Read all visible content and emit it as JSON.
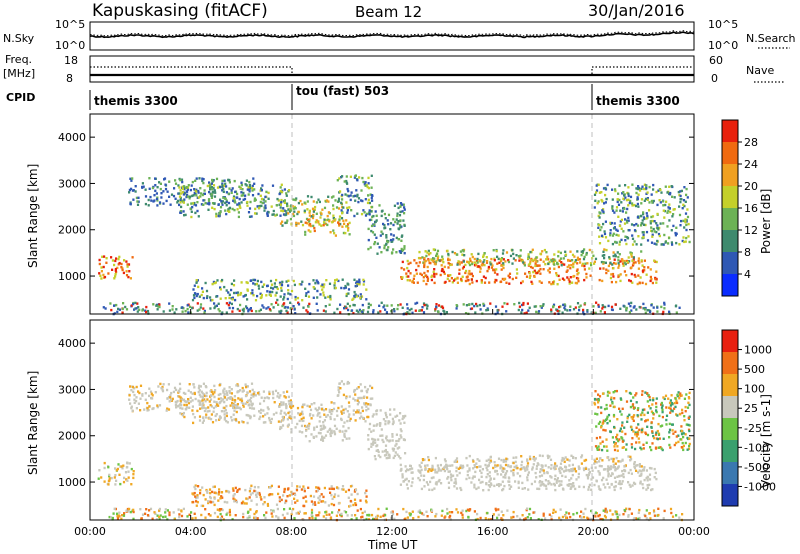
{
  "header": {
    "station": "Kapuskasing (fitACF)",
    "beam": "Beam 12",
    "date": "30/Jan/2016"
  },
  "noise_panel": {
    "left_label": "N.Sky",
    "left_ticks": [
      "10^5",
      "10^0"
    ],
    "right_label": "N.Search",
    "right_ticks": [
      "10^5",
      "10^0"
    ]
  },
  "freq_panel": {
    "left_label_1": "Freq.",
    "left_label_2": "[MHz]",
    "left_ticks": [
      "18",
      "8"
    ],
    "right_label": "Nave",
    "right_ticks": [
      "60",
      "0"
    ]
  },
  "cpid": {
    "label": "CPID",
    "segments": [
      {
        "name": "themis 3300",
        "start_hour": 0
      },
      {
        "name": "tou (fast) 503",
        "start_hour": 8
      },
      {
        "name": "themis 3300",
        "start_hour": 20
      }
    ]
  },
  "chart_data": [
    {
      "type": "heatmap",
      "ylabel": "Slant Range [km]",
      "yticks": [
        "4000",
        "3000",
        "2000",
        "1000"
      ],
      "ylim": [
        180,
        4500
      ],
      "colorbar_label": "Power [dB]",
      "colorbar_ticks": [
        "28",
        "24",
        "20",
        "16",
        "12",
        "8",
        "4"
      ],
      "colors": [
        "#0a2cff",
        "#2f58b4",
        "#3e8a6e",
        "#6cb255",
        "#c4d02a",
        "#f0a020",
        "#f06a10",
        "#e8200c"
      ]
    },
    {
      "type": "heatmap",
      "ylabel": "Slant Range [km]",
      "yticks": [
        "4000",
        "3000",
        "2000",
        "1000"
      ],
      "ylim": [
        180,
        4500
      ],
      "colorbar_label": "Velocity [m s-1]",
      "colorbar_ticks": [
        "1000",
        "500",
        "100",
        "25",
        "-25",
        "-100",
        "-500",
        "-1000"
      ],
      "colors": [
        "#1f3cb0",
        "#3a78b0",
        "#3aa06e",
        "#6cc444",
        "#c8c8bc",
        "#f0a824",
        "#f07018",
        "#e82010"
      ]
    }
  ],
  "time_axis": {
    "label": "Time UT",
    "ticks": [
      "00:00",
      "04:00",
      "08:00",
      "12:00",
      "16:00",
      "20:00",
      "00:00"
    ]
  }
}
